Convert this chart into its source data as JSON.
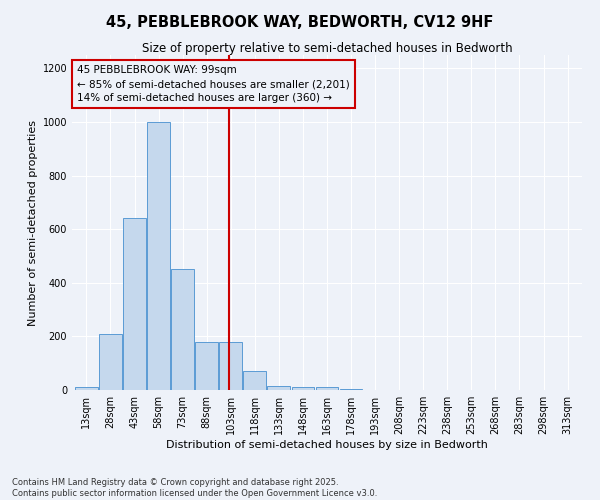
{
  "title": "45, PEBBLEBROOK WAY, BEDWORTH, CV12 9HF",
  "subtitle": "Size of property relative to semi-detached houses in Bedworth",
  "xlabel": "Distribution of semi-detached houses by size in Bedworth",
  "ylabel": "Number of semi-detached properties",
  "bin_labels": [
    "13sqm",
    "28sqm",
    "43sqm",
    "58sqm",
    "73sqm",
    "88sqm",
    "103sqm",
    "118sqm",
    "133sqm",
    "148sqm",
    "163sqm",
    "178sqm",
    "193sqm",
    "208sqm",
    "223sqm",
    "238sqm",
    "253sqm",
    "268sqm",
    "283sqm",
    "298sqm",
    "313sqm"
  ],
  "bar_values": [
    10,
    210,
    640,
    1000,
    450,
    180,
    180,
    70,
    15,
    10,
    10,
    2,
    0,
    0,
    0,
    0,
    0,
    0,
    0,
    0,
    0
  ],
  "bar_color": "#c5d8ed",
  "bar_edge_color": "#5b9bd5",
  "vline_x": 5.93,
  "vline_color": "#cc0000",
  "annotation_line1": "45 PEBBLEBROOK WAY: 99sqm",
  "annotation_line2": "← 85% of semi-detached houses are smaller (2,201)",
  "annotation_line3": "14% of semi-detached houses are larger (360) →",
  "annotation_box_color": "#cc0000",
  "ylim": [
    0,
    1250
  ],
  "yticks": [
    0,
    200,
    400,
    600,
    800,
    1000,
    1200
  ],
  "footnote": "Contains HM Land Registry data © Crown copyright and database right 2025.\nContains public sector information licensed under the Open Government Licence v3.0.",
  "bg_color": "#eef2f9",
  "grid_color": "#ffffff",
  "title_fontsize": 10.5,
  "subtitle_fontsize": 8.5,
  "axis_label_fontsize": 8,
  "tick_fontsize": 7,
  "annotation_fontsize": 7.5,
  "footnote_fontsize": 6
}
